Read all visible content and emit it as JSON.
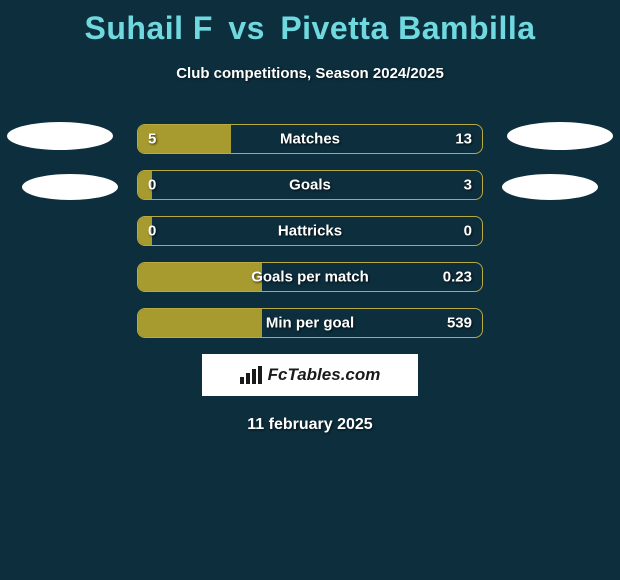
{
  "title": {
    "player1": "Suhail F",
    "vs": "vs",
    "player2": "Pivetta Bambilla",
    "color": "#70d9e0"
  },
  "subtitle": "Club competitions, Season 2024/2025",
  "background_color": "#0d2e3d",
  "bar_color": "#a79a2e",
  "bar_border_color": "#b9aa3f",
  "bars": [
    {
      "label": "Matches",
      "left": "5",
      "right": "13",
      "fill_pct": 27
    },
    {
      "label": "Goals",
      "left": "0",
      "right": "3",
      "fill_pct": 4
    },
    {
      "label": "Hattricks",
      "left": "0",
      "right": "0",
      "fill_pct": 4
    },
    {
      "label": "Goals per match",
      "left": "",
      "right": "0.23",
      "fill_pct": 36
    },
    {
      "label": "Min per goal",
      "left": "",
      "right": "539",
      "fill_pct": 36
    }
  ],
  "logo_text": "FcTables.com",
  "date": "11 february 2025"
}
